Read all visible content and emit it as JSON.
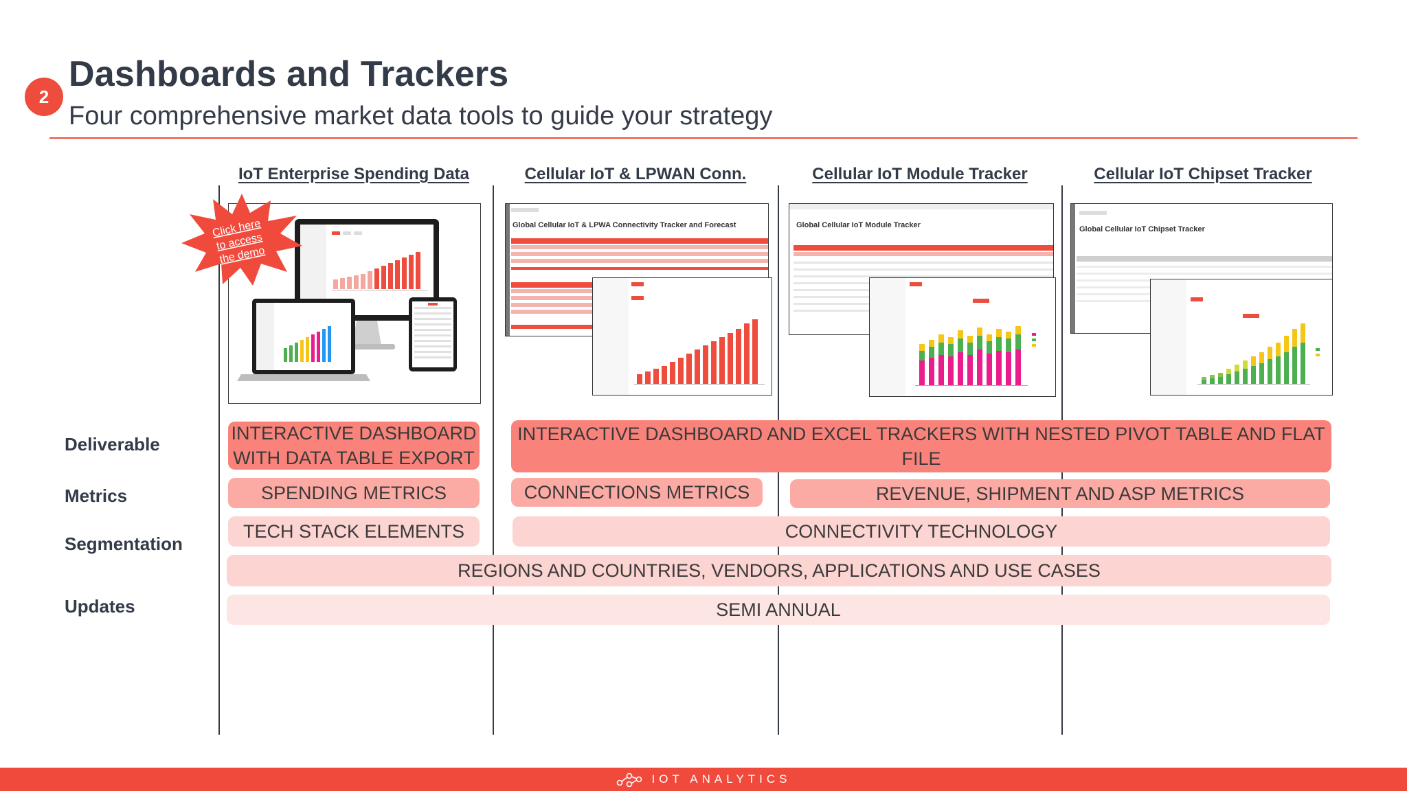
{
  "slide": {
    "number": "2",
    "title": "Dashboards and Trackers",
    "subtitle": "Four comprehensive market data tools to guide your strategy"
  },
  "columns": [
    {
      "label": "IoT  Enterprise  Spending  Data"
    },
    {
      "label": "Cellular  IoT  &  LPWAN  Conn."
    },
    {
      "label": "Cellular  IoT  Module  Tracker"
    },
    {
      "label": "Cellular  IoT  Chipset  Tracker"
    }
  ],
  "demo_burst": {
    "line1": "Click here",
    "line2": "to access",
    "line3": "the demo"
  },
  "screenshots": {
    "connectivity_title": "Global Cellular IoT & LPWA Connectivity Tracker and Forecast",
    "module_title": "Global Cellular IoT Module Tracker",
    "chipset_title": "Global Cellular IoT Chipset Tracker"
  },
  "rows": {
    "deliverable": "Deliverable",
    "metrics": "Metrics",
    "segmentation": "Segmentation",
    "updates": "Updates"
  },
  "cells": {
    "deliverable_spending_line1": "INTERACTIVE DASHBOARD",
    "deliverable_spending_line2": "WITH DATA TABLE EXPORT",
    "deliverable_trackers": "INTERACTIVE DASHBOARD AND EXCEL TRACKERS WITH NESTED PIVOT TABLE AND FLAT FILE",
    "metrics_spending": "SPENDING METRICS",
    "metrics_connections": "CONNECTIONS METRICS",
    "metrics_revenue": "REVENUE, SHIPMENT AND ASP METRICS",
    "segmentation_spending": "TECH STACK ELEMENTS",
    "segmentation_connectivity": "CONNECTIVITY TECHNOLOGY",
    "segmentation_all": "REGIONS AND COUNTRIES, VENDORS, APPLICATIONS AND USE CASES",
    "updates_all": "SEMI ANNUAL"
  },
  "footer": {
    "brand": "IOT ANALYTICS"
  },
  "colors": {
    "accent": "#ee4c3c",
    "pill_strong": "#f9837a",
    "pill_medium": "#fbaaa4",
    "pill_light": "#fcd4d1",
    "pill_lightest": "#fde5e3"
  }
}
